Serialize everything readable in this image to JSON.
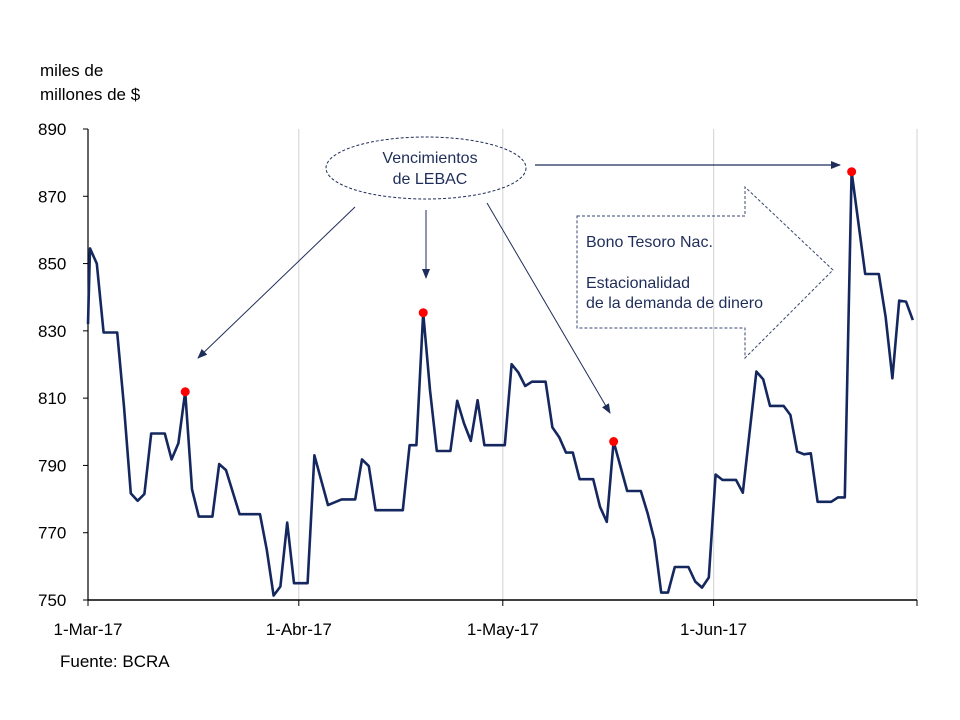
{
  "chart_data": {
    "type": "line",
    "ylabel": [
      "miles de",
      "millones de $"
    ],
    "source": "Fuente: BCRA",
    "ylim": [
      750,
      890
    ],
    "yticks": [
      "750",
      "770",
      "790",
      "810",
      "830",
      "850",
      "870",
      "890"
    ],
    "xticks": [
      {
        "label": "1-Mar-17",
        "date": "2017-03-01"
      },
      {
        "label": "1-Abr-17",
        "date": "2017-04-01"
      },
      {
        "label": "1-May-17",
        "date": "2017-05-01"
      },
      {
        "label": "1-Jun-17",
        "date": "2017-06-01"
      }
    ],
    "xlim": [
      "2017-03-01",
      "2017-07-01"
    ],
    "grid": "vertical at month starts",
    "colors": {
      "line": "#14285f",
      "highlight": "#ff0000",
      "annotation": "#1f2d5a"
    },
    "series": [
      {
        "points": [
          [
            "2017-03-01",
            832
          ],
          [
            "2017-03-02",
            854.5
          ],
          [
            "2017-03-03",
            850
          ],
          [
            "2017-03-04",
            829.5
          ],
          [
            "2017-03-06",
            829.5
          ],
          [
            "2017-03-07",
            807.5
          ],
          [
            "2017-03-08",
            781.7
          ],
          [
            "2017-03-09",
            779.5
          ],
          [
            "2017-03-10",
            781.5
          ],
          [
            "2017-03-11",
            799.5
          ],
          [
            "2017-03-13",
            799.5
          ],
          [
            "2017-03-14",
            791.8
          ],
          [
            "2017-03-15",
            796.6
          ],
          [
            "2017-03-16",
            811.9
          ],
          [
            "2017-03-17",
            782.9
          ],
          [
            "2017-03-18",
            774.8
          ],
          [
            "2017-03-20",
            774.8
          ],
          [
            "2017-03-21",
            790.4
          ],
          [
            "2017-03-22",
            788.6
          ],
          [
            "2017-03-24",
            775.5
          ],
          [
            "2017-03-27",
            775.5
          ],
          [
            "2017-03-28",
            764.9
          ],
          [
            "2017-03-29",
            751.3
          ],
          [
            "2017-03-30",
            754
          ],
          [
            "2017-03-31",
            773
          ],
          [
            "2017-04-01",
            755
          ],
          [
            "2017-04-03",
            755
          ],
          [
            "2017-04-04",
            793
          ],
          [
            "2017-04-06",
            778.2
          ],
          [
            "2017-04-08",
            779.9
          ],
          [
            "2017-04-10",
            779.9
          ],
          [
            "2017-04-11",
            791.8
          ],
          [
            "2017-04-12",
            789.8
          ],
          [
            "2017-04-13",
            776.7
          ],
          [
            "2017-04-17",
            776.7
          ],
          [
            "2017-04-18",
            796
          ],
          [
            "2017-04-19",
            796
          ],
          [
            "2017-04-20",
            835.4
          ],
          [
            "2017-04-21",
            812.4
          ],
          [
            "2017-04-22",
            794.3
          ],
          [
            "2017-04-24",
            794.3
          ],
          [
            "2017-04-25",
            809.2
          ],
          [
            "2017-04-26",
            802.5
          ],
          [
            "2017-04-27",
            797.3
          ],
          [
            "2017-04-28",
            809.4
          ],
          [
            "2017-04-29",
            796
          ],
          [
            "2017-05-02",
            796
          ],
          [
            "2017-05-03",
            820.1
          ],
          [
            "2017-05-04",
            817.6
          ],
          [
            "2017-05-05",
            813.6
          ],
          [
            "2017-05-06",
            814.9
          ],
          [
            "2017-05-08",
            814.9
          ],
          [
            "2017-05-09",
            801.3
          ],
          [
            "2017-05-10",
            798.4
          ],
          [
            "2017-05-11",
            793.8
          ],
          [
            "2017-05-12",
            793.8
          ],
          [
            "2017-05-13",
            785.9
          ],
          [
            "2017-05-15",
            785.9
          ],
          [
            "2017-05-16",
            777.7
          ],
          [
            "2017-05-17",
            773.2
          ],
          [
            "2017-05-18",
            797.1
          ],
          [
            "2017-05-20",
            782.4
          ],
          [
            "2017-05-22",
            782.4
          ],
          [
            "2017-05-23",
            775.8
          ],
          [
            "2017-05-24",
            767.8
          ],
          [
            "2017-05-25",
            752.2
          ],
          [
            "2017-05-26",
            752.2
          ],
          [
            "2017-05-27",
            759.8
          ],
          [
            "2017-05-29",
            759.8
          ],
          [
            "2017-05-30",
            755.5
          ],
          [
            "2017-05-31",
            753.7
          ],
          [
            "2017-06-01",
            756.7
          ],
          [
            "2017-06-02",
            787.3
          ],
          [
            "2017-06-03",
            785.7
          ],
          [
            "2017-06-05",
            785.7
          ],
          [
            "2017-06-06",
            781.9
          ],
          [
            "2017-06-08",
            817.9
          ],
          [
            "2017-06-09",
            815.6
          ],
          [
            "2017-06-10",
            807.7
          ],
          [
            "2017-06-12",
            807.7
          ],
          [
            "2017-06-13",
            805
          ],
          [
            "2017-06-14",
            794.1
          ],
          [
            "2017-06-15",
            793.3
          ],
          [
            "2017-06-16",
            793.6
          ],
          [
            "2017-06-17",
            779.2
          ],
          [
            "2017-06-19",
            779.2
          ],
          [
            "2017-06-20",
            780.5
          ],
          [
            "2017-06-21",
            780.5
          ],
          [
            "2017-06-22",
            877.3
          ],
          [
            "2017-06-24",
            846.9
          ],
          [
            "2017-06-26",
            846.9
          ],
          [
            "2017-06-27",
            834.2
          ],
          [
            "2017-06-28",
            815.9
          ],
          [
            "2017-06-29",
            839
          ],
          [
            "2017-06-30",
            838.7
          ],
          [
            "2017-07-01",
            833.2
          ]
        ]
      }
    ],
    "highlighted_points": [
      "2017-03-16",
      "2017-04-20",
      "2017-05-18",
      "2017-06-22"
    ],
    "annotations": {
      "lebac": [
        "Vencimientos",
        "de LEBAC"
      ],
      "bono": "Bono Tesoro Nac.",
      "estacionalidad": [
        "Estacionalidad",
        "de la demanda de dinero"
      ]
    }
  }
}
